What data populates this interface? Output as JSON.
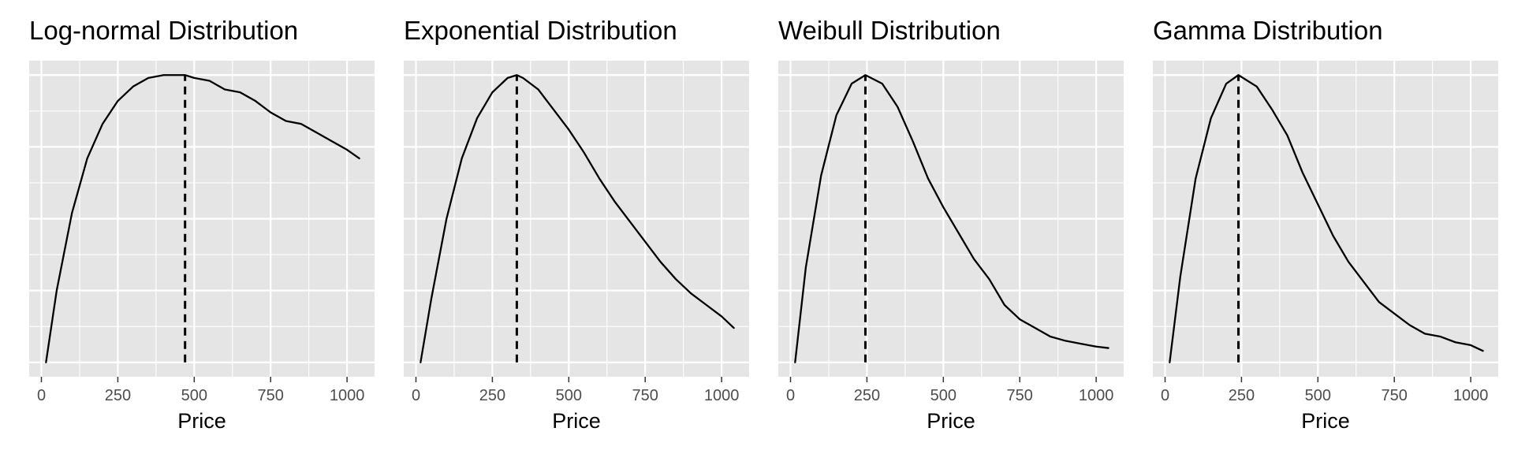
{
  "figure": {
    "panel_background": "#e5e5e5",
    "grid_color": "#ffffff",
    "line_color": "#000000"
  },
  "chart_data": [
    {
      "type": "line",
      "title": "Log-normal Distribution",
      "xlabel": "Price",
      "ylabel": "",
      "xlim": [
        -40,
        1090
      ],
      "ylim": [
        -0.05,
        1.05
      ],
      "xticks": [
        0,
        250,
        500,
        750,
        1000
      ],
      "x_tick_labels": [
        "0",
        "250",
        "500",
        "750",
        "1000"
      ],
      "mode_line_x": 470,
      "grid": true,
      "series": [
        {
          "x": [
            15,
            50,
            100,
            150,
            200,
            250,
            300,
            350,
            400,
            450,
            470,
            500,
            550,
            600,
            650,
            700,
            750,
            800,
            850,
            900,
            950,
            1000,
            1040
          ],
          "y": [
            0.0,
            0.25,
            0.52,
            0.71,
            0.83,
            0.91,
            0.96,
            0.99,
            1.0,
            1.0,
            1.0,
            0.99,
            0.98,
            0.95,
            0.94,
            0.91,
            0.87,
            0.84,
            0.83,
            0.8,
            0.77,
            0.74,
            0.71
          ]
        }
      ]
    },
    {
      "type": "line",
      "title": "Exponential Distribution",
      "xlabel": "Price",
      "ylabel": "",
      "xlim": [
        -40,
        1090
      ],
      "ylim": [
        -0.05,
        1.05
      ],
      "xticks": [
        0,
        250,
        500,
        750,
        1000
      ],
      "x_tick_labels": [
        "0",
        "250",
        "500",
        "750",
        "1000"
      ],
      "mode_line_x": 330,
      "grid": true,
      "series": [
        {
          "x": [
            15,
            50,
            100,
            150,
            200,
            250,
            300,
            330,
            350,
            400,
            450,
            500,
            550,
            600,
            650,
            700,
            750,
            800,
            850,
            900,
            950,
            1000,
            1040
          ],
          "y": [
            0.0,
            0.22,
            0.5,
            0.71,
            0.85,
            0.94,
            0.99,
            1.0,
            0.99,
            0.95,
            0.88,
            0.81,
            0.73,
            0.64,
            0.56,
            0.49,
            0.42,
            0.35,
            0.29,
            0.24,
            0.2,
            0.16,
            0.12
          ]
        }
      ]
    },
    {
      "type": "line",
      "title": "Weibull Distribution",
      "xlabel": "Price",
      "ylabel": "",
      "xlim": [
        -40,
        1090
      ],
      "ylim": [
        -0.05,
        1.05
      ],
      "xticks": [
        0,
        250,
        500,
        750,
        1000
      ],
      "x_tick_labels": [
        "0",
        "250",
        "500",
        "750",
        "1000"
      ],
      "mode_line_x": 245,
      "grid": true,
      "series": [
        {
          "x": [
            15,
            50,
            100,
            150,
            200,
            245,
            300,
            350,
            400,
            450,
            500,
            550,
            600,
            650,
            700,
            750,
            800,
            850,
            900,
            950,
            1000,
            1040
          ],
          "y": [
            0.0,
            0.33,
            0.65,
            0.86,
            0.97,
            1.0,
            0.97,
            0.89,
            0.77,
            0.64,
            0.54,
            0.45,
            0.36,
            0.29,
            0.2,
            0.15,
            0.12,
            0.09,
            0.075,
            0.065,
            0.055,
            0.05
          ]
        }
      ]
    },
    {
      "type": "line",
      "title": "Gamma Distribution",
      "xlabel": "Price",
      "ylabel": "",
      "xlim": [
        -40,
        1090
      ],
      "ylim": [
        -0.05,
        1.05
      ],
      "xticks": [
        0,
        250,
        500,
        750,
        1000
      ],
      "x_tick_labels": [
        "0",
        "250",
        "500",
        "750",
        "1000"
      ],
      "mode_line_x": 240,
      "grid": true,
      "series": [
        {
          "x": [
            15,
            50,
            100,
            150,
            200,
            240,
            300,
            350,
            400,
            450,
            500,
            550,
            600,
            650,
            700,
            750,
            800,
            850,
            900,
            950,
            1000,
            1040
          ],
          "y": [
            0.0,
            0.3,
            0.64,
            0.85,
            0.97,
            1.0,
            0.96,
            0.88,
            0.79,
            0.66,
            0.55,
            0.44,
            0.35,
            0.28,
            0.21,
            0.17,
            0.13,
            0.1,
            0.09,
            0.07,
            0.06,
            0.04
          ]
        }
      ]
    }
  ]
}
